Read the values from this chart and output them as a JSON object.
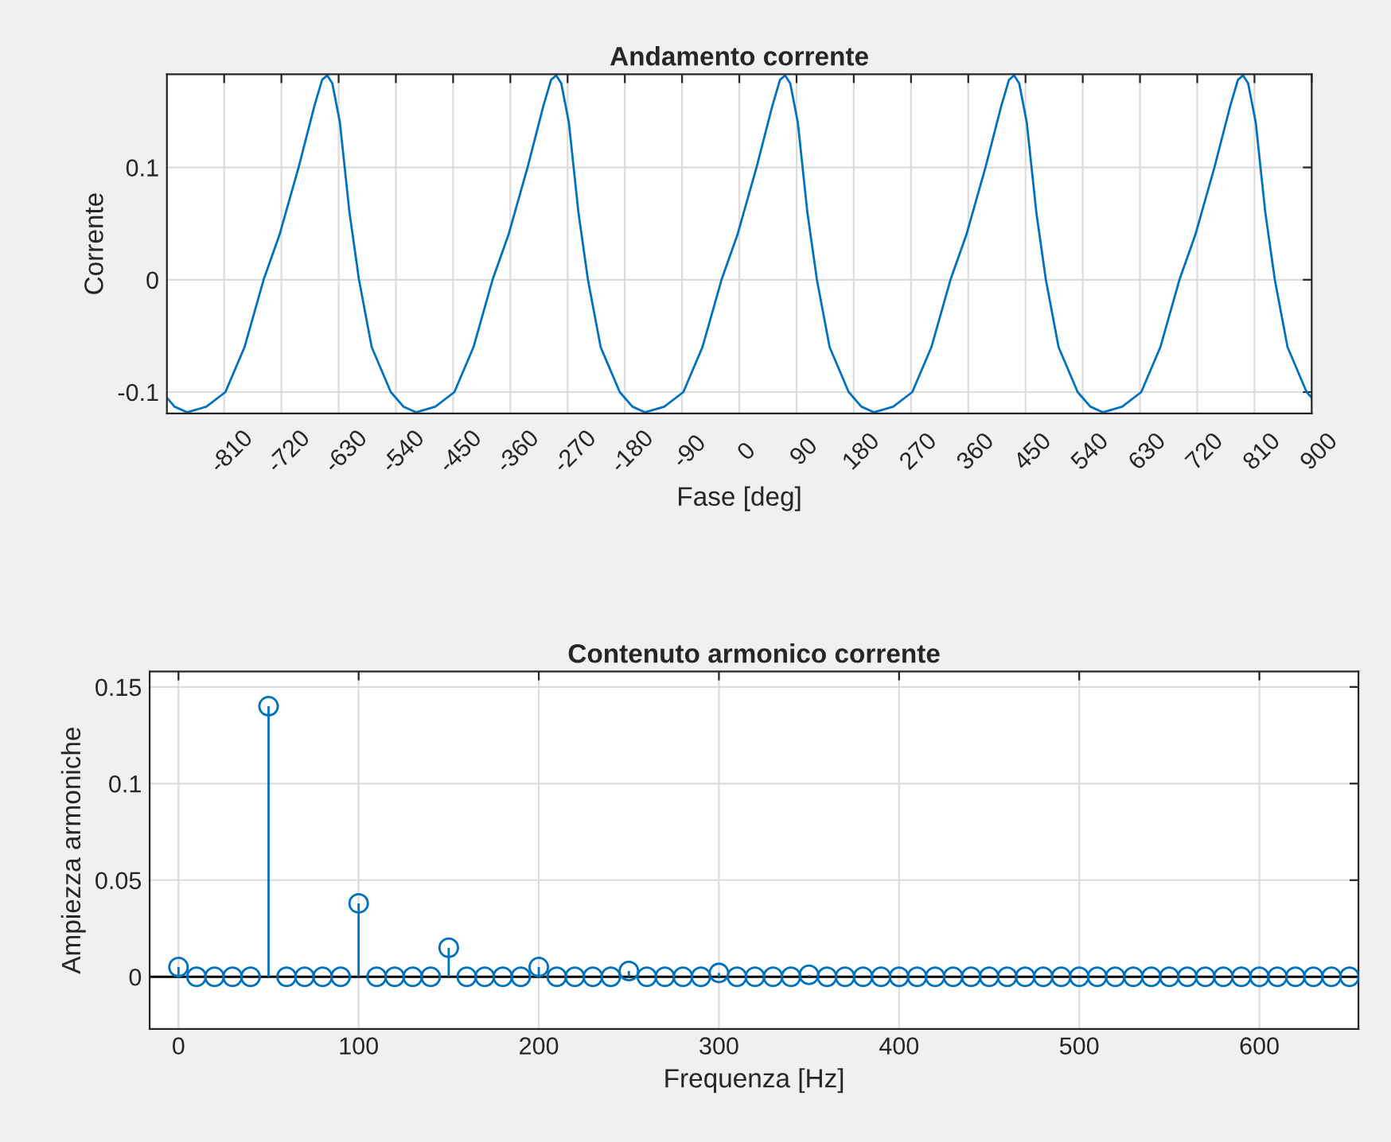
{
  "chart_data": [
    {
      "type": "line",
      "title": "Andamento corrente",
      "xlabel": "Fase [deg]",
      "ylabel": "Corrente",
      "x": [
        -900,
        -888,
        -868,
        -838,
        -808,
        -778,
        -748,
        -723,
        -693,
        -668,
        -656,
        -648,
        -640,
        -628,
        -613,
        -598,
        -578,
        -548,
        -528,
        -508,
        -478,
        -448,
        -418,
        -388,
        -363,
        -333,
        -308,
        -296,
        -288,
        -280,
        -268,
        -253,
        -238,
        -218,
        -188,
        -168,
        -148,
        -118,
        -88,
        -58,
        -28,
        -3,
        27,
        52,
        64,
        72,
        80,
        92,
        107,
        122,
        142,
        172,
        192,
        212,
        242,
        272,
        302,
        332,
        357,
        387,
        412,
        424,
        432,
        440,
        452,
        467,
        482,
        502,
        532,
        552,
        572,
        602,
        632,
        662,
        692,
        717,
        747,
        772,
        784,
        792,
        800,
        812,
        827,
        842,
        862,
        892,
        900
      ],
      "series": [
        {
          "color": "#0072bd",
          "values": [
            -0.105,
            -0.113,
            -0.118,
            -0.113,
            -0.1,
            -0.06,
            0.0,
            0.04,
            0.1,
            0.155,
            0.178,
            0.182,
            0.175,
            0.14,
            0.06,
            0.0,
            -0.06,
            -0.1,
            -0.113,
            -0.118,
            -0.113,
            -0.1,
            -0.06,
            0.0,
            0.04,
            0.1,
            0.155,
            0.178,
            0.182,
            0.175,
            0.14,
            0.06,
            0.0,
            -0.06,
            -0.1,
            -0.113,
            -0.118,
            -0.113,
            -0.1,
            -0.06,
            0.0,
            0.04,
            0.1,
            0.155,
            0.178,
            0.182,
            0.175,
            0.14,
            0.06,
            0.0,
            -0.06,
            -0.1,
            -0.113,
            -0.118,
            -0.113,
            -0.1,
            -0.06,
            0.0,
            0.04,
            0.1,
            0.155,
            0.178,
            0.182,
            0.175,
            0.14,
            0.06,
            0.0,
            -0.06,
            -0.1,
            -0.113,
            -0.118,
            -0.113,
            -0.1,
            -0.06,
            0.0,
            0.04,
            0.1,
            0.155,
            0.178,
            0.182,
            0.175,
            0.14,
            0.06,
            0.0,
            -0.06,
            -0.1,
            -0.105
          ]
        }
      ],
      "xlim": [
        -900,
        900
      ],
      "xticks": [
        -810,
        -720,
        -630,
        -540,
        -450,
        -360,
        -270,
        -180,
        -90,
        0,
        90,
        180,
        270,
        360,
        450,
        540,
        630,
        720,
        810,
        900
      ],
      "ylim": [
        -0.119,
        0.183
      ],
      "yticks": [
        -0.1,
        0,
        0.1
      ],
      "grid": true,
      "marker": "none",
      "line_style": "solid"
    },
    {
      "type": "lollipop",
      "title": "Contenuto armonico corrente",
      "xlabel": "Frequenza [Hz]",
      "ylabel": "Ampiezza armoniche",
      "x": [
        0,
        10,
        20,
        30,
        40,
        50,
        60,
        70,
        80,
        90,
        100,
        110,
        120,
        130,
        140,
        150,
        160,
        170,
        180,
        190,
        200,
        210,
        220,
        230,
        240,
        250,
        260,
        270,
        280,
        290,
        300,
        310,
        320,
        330,
        340,
        350,
        360,
        370,
        380,
        390,
        400,
        410,
        420,
        430,
        440,
        450,
        460,
        470,
        480,
        490,
        500,
        510,
        520,
        530,
        540,
        550,
        560,
        570,
        580,
        590,
        600,
        610,
        620,
        630,
        640,
        650
      ],
      "series": [
        {
          "color": "#0072bd",
          "values": [
            0.005,
            0,
            0,
            0,
            0,
            0.14,
            0,
            0,
            0,
            0,
            0.038,
            0,
            0,
            0,
            0,
            0.015,
            0,
            0,
            0,
            0,
            0.005,
            0,
            0,
            0,
            0,
            0.003,
            0,
            0,
            0,
            0,
            0.002,
            0,
            0,
            0,
            0,
            0.001,
            0,
            0,
            0,
            0,
            0,
            0,
            0,
            0,
            0,
            0,
            0,
            0,
            0,
            0,
            0,
            0,
            0,
            0,
            0,
            0,
            0,
            0,
            0,
            0,
            0,
            0,
            0,
            0,
            0,
            0
          ]
        }
      ],
      "xlim": [
        -16,
        655
      ],
      "xticks": [
        0,
        100,
        200,
        300,
        400,
        500,
        600
      ],
      "ylim": [
        -0.027,
        0.158
      ],
      "yticks": [
        0,
        0.05,
        0.1,
        0.15
      ],
      "grid": true,
      "marker": "circle",
      "ref_lines": [
        {
          "axis": "y",
          "value": 0,
          "color": "#000000"
        }
      ]
    }
  ]
}
